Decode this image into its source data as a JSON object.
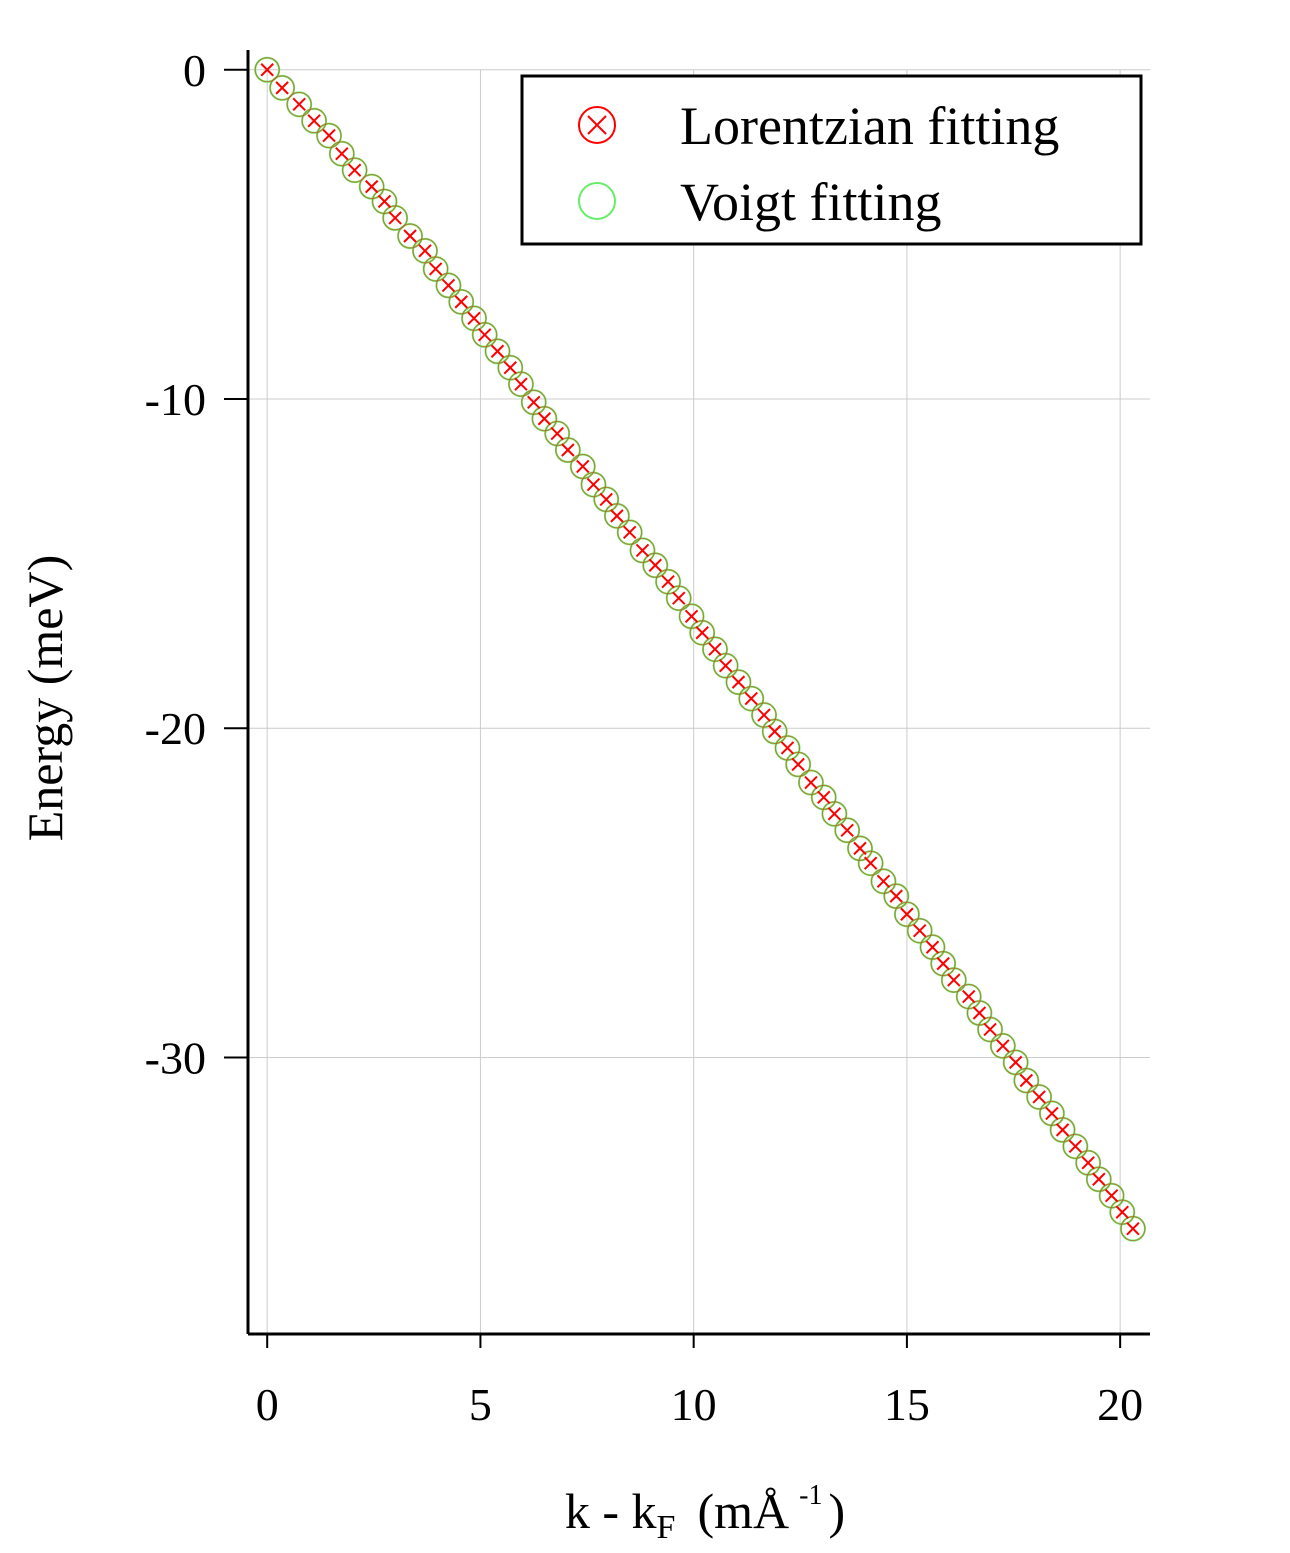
{
  "chart_data": {
    "type": "scatter",
    "title": "",
    "xlabel": {
      "main": "k - k",
      "sub": "F",
      "unit": "(mÅ",
      "sup": "-1",
      "close": ")"
    },
    "ylabel": "Energy (meV)",
    "xlim": [
      -0.45,
      20.7
    ],
    "ylim": [
      -38.4,
      0.6
    ],
    "xticks": [
      0,
      5,
      10,
      15,
      20
    ],
    "yticks": [
      0,
      -10,
      -20,
      -30
    ],
    "xtick_labels": [
      "0",
      "5",
      "10",
      "15",
      "20"
    ],
    "ytick_labels": [
      "0",
      "-10",
      "-20",
      "-30"
    ],
    "grid": true,
    "legend": {
      "position": "top-right",
      "entries": [
        {
          "label": "Lorentzian fitting",
          "color": "#ff0000",
          "marker": "circle-x"
        },
        {
          "label": "Voigt fitting",
          "color": "#66ee66",
          "marker": "circle"
        }
      ]
    },
    "series": [
      {
        "name": "Lorentzian fitting",
        "color": "#ff0000",
        "x": [
          0,
          0.35,
          0.75,
          1.1,
          1.45,
          1.75,
          2.05,
          2.45,
          2.75,
          3.0,
          3.35,
          3.7,
          3.95,
          4.25,
          4.55,
          4.85,
          5.1,
          5.4,
          5.7,
          5.95,
          6.25,
          6.5,
          6.8,
          7.05,
          7.4,
          7.65,
          7.95,
          8.2,
          8.5,
          8.8,
          9.1,
          9.4,
          9.65,
          9.95,
          10.2,
          10.5,
          10.75,
          11.05,
          11.35,
          11.65,
          11.9,
          12.2,
          12.45,
          12.75,
          13.05,
          13.3,
          13.6,
          13.9,
          14.15,
          14.45,
          14.75,
          15.0,
          15.3,
          15.6,
          15.85,
          16.1,
          16.45,
          16.7,
          16.95,
          17.25,
          17.55,
          17.8,
          18.1,
          18.4,
          18.65,
          18.95,
          19.25,
          19.5,
          19.8,
          20.05,
          20.3
        ],
        "y": [
          0,
          -0.55,
          -1.05,
          -1.55,
          -2.0,
          -2.55,
          -3.05,
          -3.55,
          -4.0,
          -4.5,
          -5.05,
          -5.5,
          -6.05,
          -6.55,
          -7.05,
          -7.55,
          -8.05,
          -8.55,
          -9.05,
          -9.55,
          -10.1,
          -10.6,
          -11.05,
          -11.55,
          -12.05,
          -12.6,
          -13.05,
          -13.55,
          -14.05,
          -14.6,
          -15.05,
          -15.55,
          -16.05,
          -16.6,
          -17.1,
          -17.6,
          -18.1,
          -18.6,
          -19.1,
          -19.6,
          -20.1,
          -20.6,
          -21.1,
          -21.65,
          -22.1,
          -22.6,
          -23.1,
          -23.65,
          -24.1,
          -24.65,
          -25.1,
          -25.65,
          -26.15,
          -26.65,
          -27.15,
          -27.65,
          -28.15,
          -28.65,
          -29.15,
          -29.65,
          -30.15,
          -30.7,
          -31.2,
          -31.7,
          -32.2,
          -32.7,
          -33.2,
          -33.7,
          -34.2,
          -34.7,
          -35.2
        ]
      },
      {
        "name": "Voigt fitting",
        "color": "#66ee66",
        "x": [
          0,
          0.35,
          0.75,
          1.1,
          1.45,
          1.75,
          2.05,
          2.45,
          2.75,
          3.0,
          3.35,
          3.7,
          3.95,
          4.25,
          4.55,
          4.85,
          5.1,
          5.4,
          5.7,
          5.95,
          6.25,
          6.5,
          6.8,
          7.05,
          7.4,
          7.65,
          7.95,
          8.2,
          8.5,
          8.8,
          9.1,
          9.4,
          9.65,
          9.95,
          10.2,
          10.5,
          10.75,
          11.05,
          11.35,
          11.65,
          11.9,
          12.2,
          12.45,
          12.75,
          13.05,
          13.3,
          13.6,
          13.9,
          14.15,
          14.45,
          14.75,
          15.0,
          15.3,
          15.6,
          15.85,
          16.1,
          16.45,
          16.7,
          16.95,
          17.25,
          17.55,
          17.8,
          18.1,
          18.4,
          18.65,
          18.95,
          19.25,
          19.5,
          19.8,
          20.05,
          20.3
        ],
        "y": [
          0,
          -0.55,
          -1.05,
          -1.55,
          -2.0,
          -2.55,
          -3.05,
          -3.55,
          -4.0,
          -4.5,
          -5.05,
          -5.5,
          -6.05,
          -6.55,
          -7.05,
          -7.55,
          -8.05,
          -8.55,
          -9.05,
          -9.55,
          -10.1,
          -10.6,
          -11.05,
          -11.55,
          -12.05,
          -12.6,
          -13.05,
          -13.55,
          -14.05,
          -14.6,
          -15.05,
          -15.55,
          -16.05,
          -16.6,
          -17.1,
          -17.6,
          -18.1,
          -18.6,
          -19.1,
          -19.6,
          -20.1,
          -20.6,
          -21.1,
          -21.65,
          -22.1,
          -22.6,
          -23.1,
          -23.65,
          -24.1,
          -24.65,
          -25.1,
          -25.65,
          -26.15,
          -26.65,
          -27.15,
          -27.65,
          -28.15,
          -28.65,
          -29.15,
          -29.65,
          -30.15,
          -30.7,
          -31.2,
          -31.7,
          -32.2,
          -32.7,
          -33.2,
          -33.7,
          -34.2,
          -34.7,
          -35.2
        ]
      }
    ]
  }
}
